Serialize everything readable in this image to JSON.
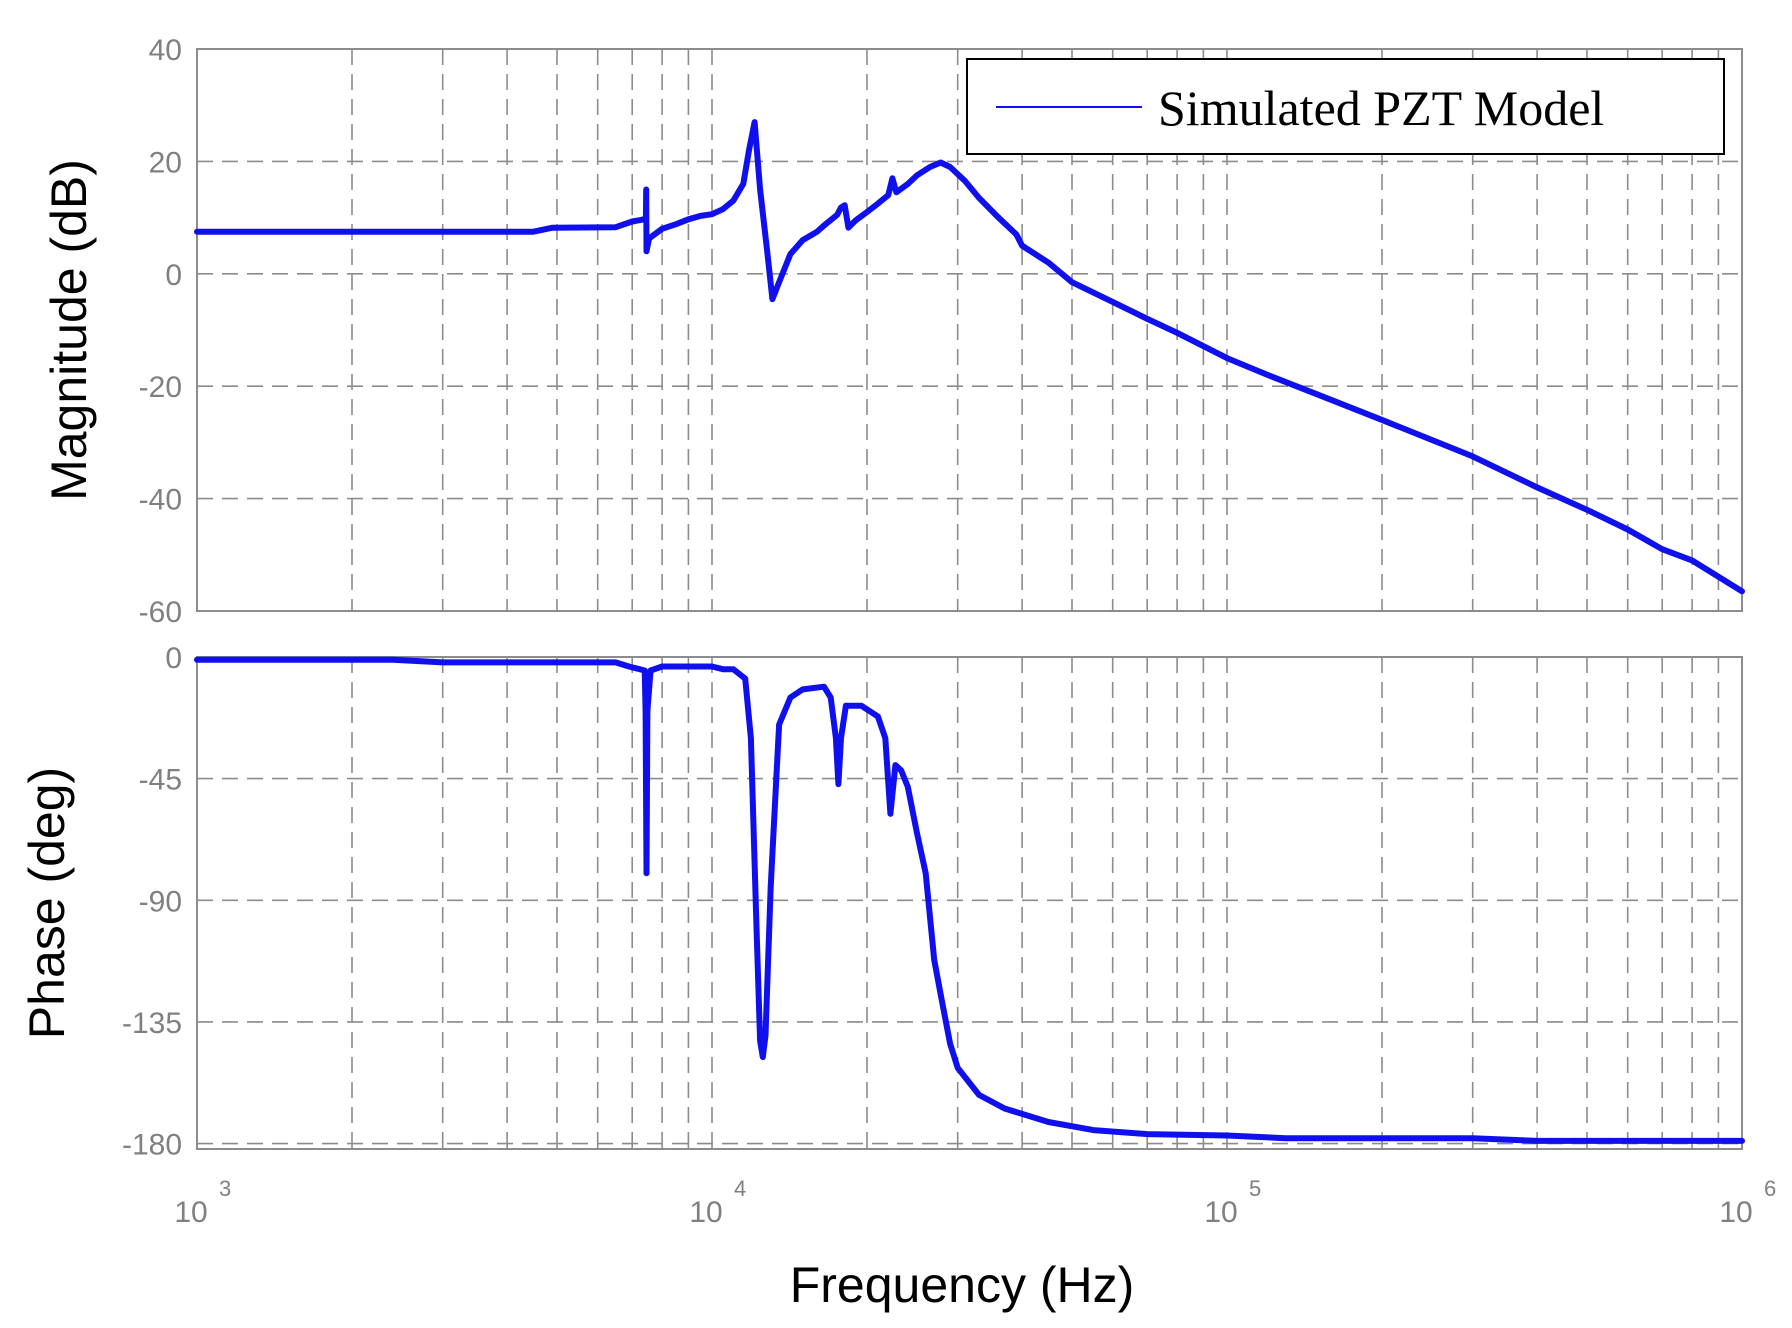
{
  "chart_data": {
    "type": "line",
    "subtype": "bode",
    "x_scale": "log",
    "xlabel": "Frequency  (Hz)",
    "xlim": [
      1000,
      1000000
    ],
    "x_ticks": [
      {
        "value": 1000,
        "base": "10",
        "exp": "3"
      },
      {
        "value": 10000,
        "base": "10",
        "exp": "4"
      },
      {
        "value": 100000,
        "base": "10",
        "exp": "5"
      },
      {
        "value": 1000000,
        "base": "10",
        "exp": "6"
      }
    ],
    "grid": true,
    "legend": {
      "position": "top-right",
      "entries": [
        "Simulated PZT Model"
      ]
    },
    "line_color": "#1010ee",
    "panels": [
      {
        "name": "magnitude",
        "ylabel": "Magnitude (dB)",
        "ylim": [
          -60,
          40
        ],
        "y_ticks": [
          40,
          20,
          0,
          -20,
          -40,
          -60
        ],
        "y_tick_labels": [
          "40",
          "20",
          "0",
          "-20",
          "-40",
          "-60"
        ],
        "series": [
          {
            "name": "Simulated PZT Model",
            "points": [
              [
                1000,
                7.5
              ],
              [
                4500,
                7.5
              ],
              [
                4900,
                8.2
              ],
              [
                6500,
                8.3
              ],
              [
                7000,
                9.3
              ],
              [
                7300,
                9.6
              ],
              [
                7440,
                9.8
              ],
              [
                7450,
                15.0
              ],
              [
                7460,
                4.0
              ],
              [
                7550,
                6.3
              ],
              [
                8000,
                8.0
              ],
              [
                8500,
                8.8
              ],
              [
                9000,
                9.7
              ],
              [
                9500,
                10.3
              ],
              [
                10000,
                10.6
              ],
              [
                10500,
                11.5
              ],
              [
                11000,
                13.0
              ],
              [
                11500,
                16.0
              ],
              [
                11800,
                22.0
              ],
              [
                12100,
                27.0
              ],
              [
                12400,
                15.0
              ],
              [
                12800,
                4.0
              ],
              [
                13100,
                -4.5
              ],
              [
                13500,
                -1.5
              ],
              [
                14200,
                3.5
              ],
              [
                15000,
                6.0
              ],
              [
                16000,
                7.5
              ],
              [
                16500,
                8.6
              ],
              [
                17500,
                10.5
              ],
              [
                17800,
                11.8
              ],
              [
                18100,
                12.2
              ],
              [
                18400,
                8.2
              ],
              [
                19000,
                9.5
              ],
              [
                20000,
                11.0
              ],
              [
                21000,
                12.5
              ],
              [
                22000,
                14.0
              ],
              [
                22400,
                17.0
              ],
              [
                22800,
                14.5
              ],
              [
                24000,
                16.0
              ],
              [
                25000,
                17.5
              ],
              [
                26500,
                19.0
              ],
              [
                27800,
                19.8
              ],
              [
                29000,
                19.0
              ],
              [
                31000,
                16.5
              ],
              [
                33000,
                13.5
              ],
              [
                36000,
                10.0
              ],
              [
                39000,
                7.0
              ],
              [
                40000,
                5.0
              ],
              [
                45000,
                2.0
              ],
              [
                50000,
                -1.5
              ],
              [
                60000,
                -5.0
              ],
              [
                70000,
                -8.0
              ],
              [
                80000,
                -10.5
              ],
              [
                100000,
                -15.0
              ],
              [
                120000,
                -18.0
              ],
              [
                150000,
                -21.5
              ],
              [
                200000,
                -26.0
              ],
              [
                300000,
                -32.5
              ],
              [
                400000,
                -38.0
              ],
              [
                500000,
                -42.0
              ],
              [
                600000,
                -45.5
              ],
              [
                700000,
                -49.0
              ],
              [
                800000,
                -51.0
              ],
              [
                1000000,
                -56.5
              ]
            ]
          }
        ]
      },
      {
        "name": "phase",
        "ylabel": "Phase (deg)",
        "ylim": [
          -182,
          0
        ],
        "y_ticks": [
          0,
          -45,
          -90,
          -135,
          -180
        ],
        "y_tick_labels": [
          "0",
          "-45",
          "-90",
          "-135",
          "-180"
        ],
        "series": [
          {
            "name": "Simulated PZT Model",
            "points": [
              [
                1000,
                -1.0
              ],
              [
                2400,
                -1.0
              ],
              [
                3000,
                -2.0
              ],
              [
                6500,
                -2.0
              ],
              [
                6900,
                -3.5
              ],
              [
                7400,
                -5.0
              ],
              [
                7430,
                -20.0
              ],
              [
                7460,
                -80.0
              ],
              [
                7490,
                -20.0
              ],
              [
                7600,
                -5.0
              ],
              [
                8000,
                -3.5
              ],
              [
                10000,
                -3.5
              ],
              [
                10500,
                -4.5
              ],
              [
                11000,
                -4.5
              ],
              [
                11600,
                -8.0
              ],
              [
                11900,
                -30.0
              ],
              [
                12200,
                -100.0
              ],
              [
                12400,
                -142.0
              ],
              [
                12550,
                -148.0
              ],
              [
                12700,
                -140.0
              ],
              [
                13000,
                -85.0
              ],
              [
                13500,
                -25.0
              ],
              [
                14200,
                -15.0
              ],
              [
                15000,
                -12.0
              ],
              [
                16500,
                -11.0
              ],
              [
                17000,
                -15.0
              ],
              [
                17400,
                -30.0
              ],
              [
                17600,
                -47.0
              ],
              [
                17800,
                -30.0
              ],
              [
                18200,
                -18.0
              ],
              [
                19500,
                -18.0
              ],
              [
                21000,
                -22.0
              ],
              [
                21700,
                -30.0
              ],
              [
                22200,
                -58.0
              ],
              [
                22700,
                -40.0
              ],
              [
                23300,
                -42.0
              ],
              [
                24000,
                -48.0
              ],
              [
                25000,
                -65.0
              ],
              [
                26000,
                -80.0
              ],
              [
                27000,
                -112.0
              ],
              [
                28000,
                -128.0
              ],
              [
                29000,
                -143.0
              ],
              [
                30000,
                -152.0
              ],
              [
                33000,
                -162.0
              ],
              [
                37000,
                -167.0
              ],
              [
                45000,
                -172.0
              ],
              [
                55000,
                -175.0
              ],
              [
                70000,
                -176.5
              ],
              [
                100000,
                -177.0
              ],
              [
                130000,
                -178.0
              ],
              [
                300000,
                -178.0
              ],
              [
                400000,
                -179.0
              ],
              [
                1000000,
                -179.0
              ]
            ]
          }
        ]
      }
    ]
  }
}
